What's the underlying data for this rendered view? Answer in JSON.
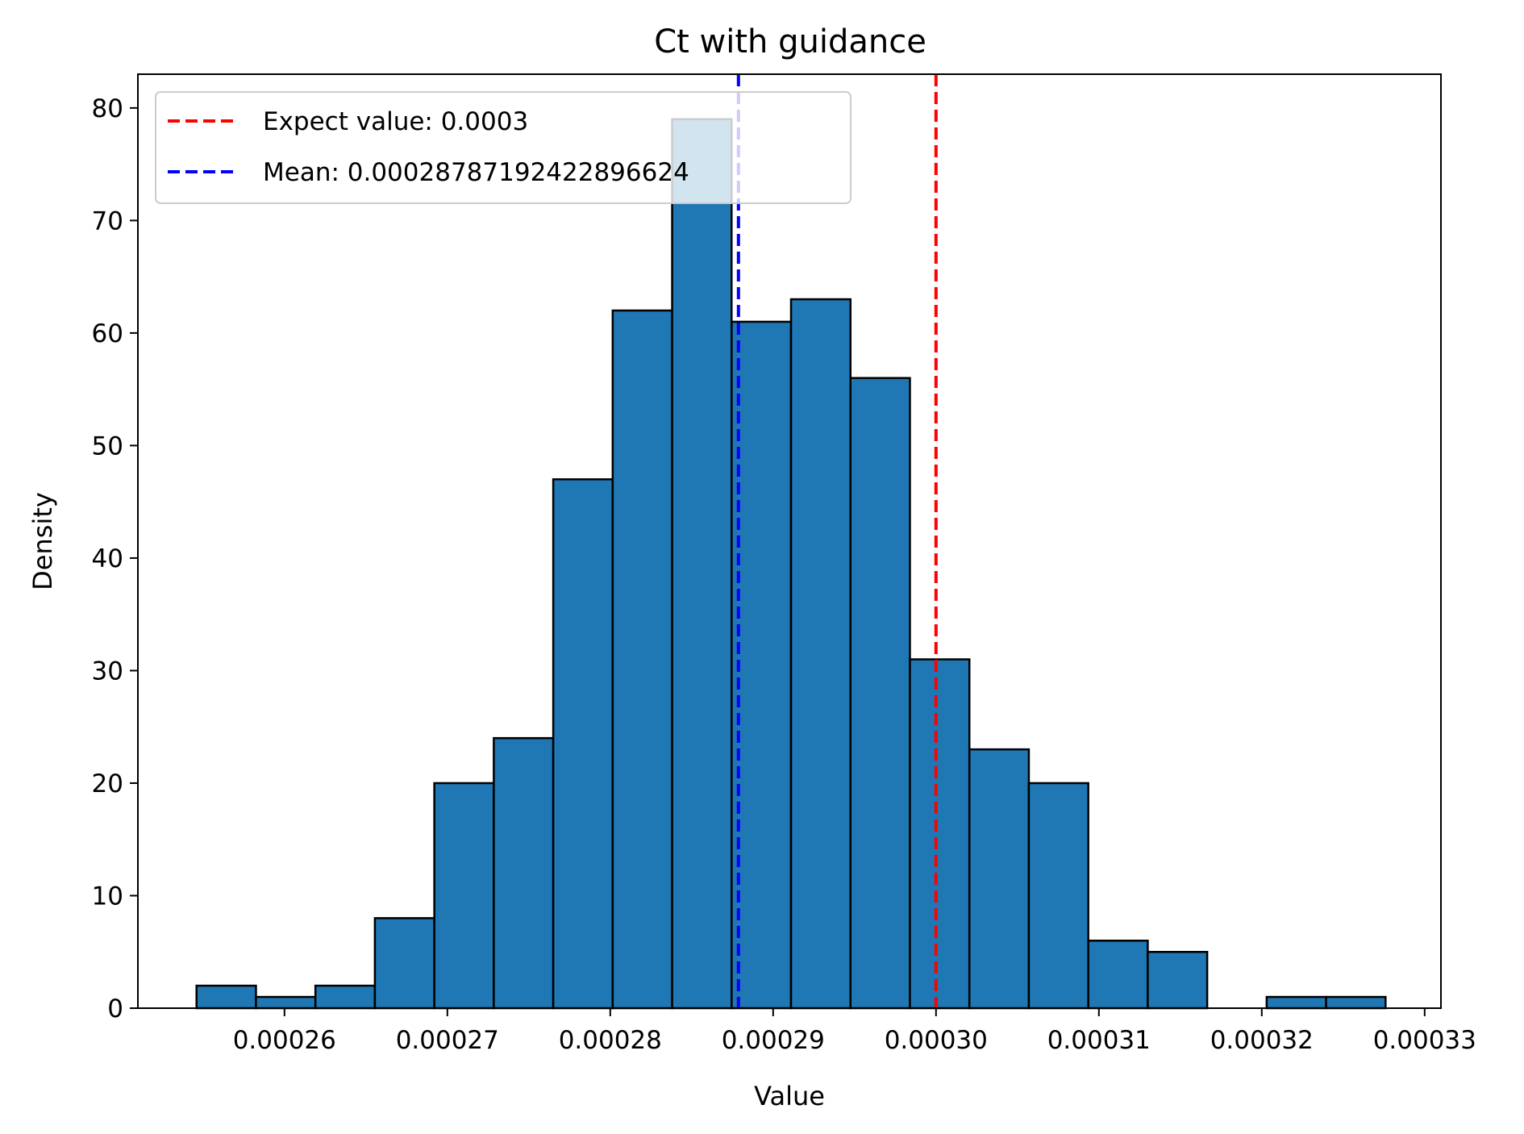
{
  "chart_data": {
    "type": "bar",
    "title": "Ct with guidance",
    "xlabel": "Value",
    "ylabel": "Density",
    "xlim": [
      0.000251,
      0.000331
    ],
    "ylim": [
      0,
      83
    ],
    "x_ticks": [
      0.00026,
      0.00027,
      0.00028,
      0.00029,
      0.0003,
      0.00031,
      0.00032,
      0.00033
    ],
    "x_tick_labels": [
      "0.00026",
      "0.00027",
      "0.00028",
      "0.00029",
      "0.00030",
      "0.00031",
      "0.00032",
      "0.00033"
    ],
    "y_ticks": [
      0,
      10,
      20,
      30,
      40,
      50,
      60,
      70,
      80
    ],
    "y_tick_labels": [
      "0",
      "10",
      "20",
      "30",
      "40",
      "50",
      "60",
      "70",
      "80"
    ],
    "bin_start": 0.0002546,
    "bin_width": 3.65e-06,
    "values": [
      2,
      1,
      2,
      8,
      20,
      24,
      47,
      62,
      79,
      61,
      63,
      56,
      31,
      23,
      20,
      6,
      5,
      0,
      1,
      1
    ],
    "bar_color": "#1f77b4",
    "edge_color": "#000000",
    "grid": false,
    "legend_position": "upper-left",
    "reference_lines": [
      {
        "name": "Expect value: 0.0003",
        "x": 0.0003,
        "color": "#ff0000",
        "style": "dashed"
      },
      {
        "name": "Mean: 0.00028787192422896624",
        "x": 0.00028787192422896624,
        "color": "#0000ff",
        "style": "dashed"
      }
    ]
  }
}
